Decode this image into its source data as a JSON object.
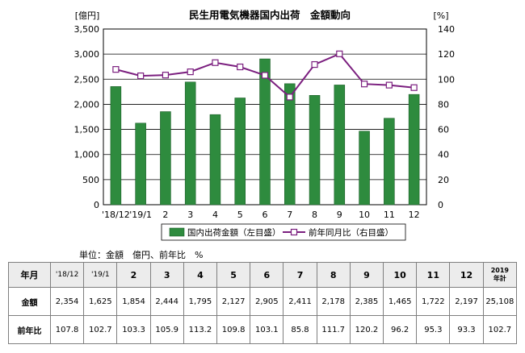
{
  "chart_data": {
    "type": "bar+line",
    "title": "民生用電気機器国内出荷　金額動向",
    "y_left_unit": "[億円]",
    "y_right_unit": "[%]",
    "ylim_left": [
      0,
      3500
    ],
    "ylim_right": [
      0,
      140
    ],
    "y_left_ticks": [
      "0",
      "500",
      "1,000",
      "1,500",
      "2,000",
      "2,500",
      "3,000",
      "3,500"
    ],
    "y_right_ticks": [
      "0",
      "20",
      "40",
      "60",
      "80",
      "100",
      "120",
      "140"
    ],
    "categories": [
      "'18/12",
      "'19/1",
      "2",
      "3",
      "4",
      "5",
      "6",
      "7",
      "8",
      "9",
      "10",
      "11",
      "12"
    ],
    "series": [
      {
        "name": "国内出荷金額（左目盛）",
        "kind": "bar",
        "axis": "left",
        "color": "#2e8b3e",
        "values": [
          2354,
          1625,
          1854,
          2444,
          1795,
          2127,
          2905,
          2411,
          2178,
          2385,
          1465,
          1722,
          2197
        ]
      },
      {
        "name": "前年同月比（右目盛）",
        "kind": "line",
        "axis": "right",
        "color": "#7b1f7f",
        "values": [
          107.8,
          102.7,
          103.3,
          105.9,
          113.2,
          109.8,
          103.1,
          85.8,
          111.7,
          120.2,
          96.2,
          95.3,
          93.3
        ]
      }
    ],
    "grid": true,
    "legend": "bottom"
  },
  "unit_note": "単位：金額　億円、前年比　%",
  "table": {
    "header_label": "年月",
    "columns": [
      "'18/12",
      "'19/1",
      "2",
      "3",
      "4",
      "5",
      "6",
      "7",
      "8",
      "9",
      "10",
      "11",
      "12"
    ],
    "total_header_line1": "2019",
    "total_header_line2": "年計",
    "rows": [
      {
        "label": "金額",
        "cells": [
          "2,354",
          "1,625",
          "1,854",
          "2,444",
          "1,795",
          "2,127",
          "2,905",
          "2,411",
          "2,178",
          "2,385",
          "1,465",
          "1,722",
          "2,197"
        ],
        "total": "25,108"
      },
      {
        "label": "前年比",
        "cells": [
          "107.8",
          "102.7",
          "103.3",
          "105.9",
          "113.2",
          "109.8",
          "103.1",
          "85.8",
          "111.7",
          "120.2",
          "96.2",
          "95.3",
          "93.3"
        ],
        "total": "102.7"
      }
    ]
  }
}
